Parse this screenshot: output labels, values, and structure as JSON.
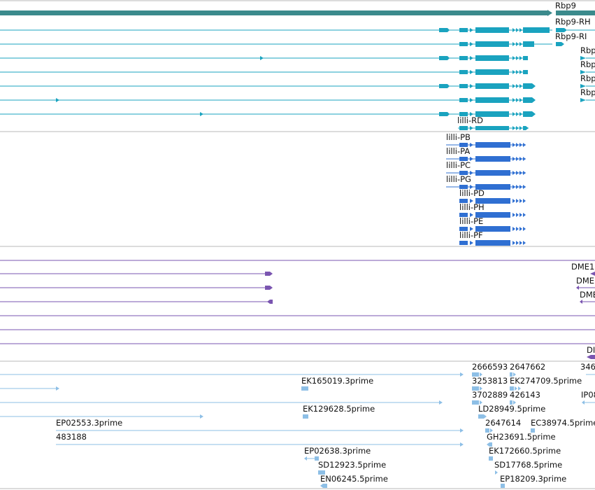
{
  "colors": {
    "gene": "#3b8a8c",
    "transcript_teal": "#1aa3bf",
    "transcript_blue": "#2f6fd2",
    "transcript_purple": "#7a55b0",
    "est": "#8dbfe6",
    "separator": "#b9b9b9"
  },
  "gene_track": {
    "labels": [
      "Rbp9",
      "Rbp9-RH",
      "Rbp9-RI",
      "Rbp",
      "Rbp",
      "Rbp",
      "Rbp",
      "lilli-RD"
    ]
  },
  "lilli_track": {
    "labels": [
      "lilli-PB",
      "lilli-PA",
      "lilli-PC",
      "lilli-PG",
      "lilli-PD",
      "lilli-PH",
      "lilli-PE",
      "lilli-PF"
    ]
  },
  "purple_track": {
    "labels": [
      "DME1",
      "DME",
      "DME",
      "DI"
    ]
  },
  "est_track": {
    "labels": [
      "2666593",
      "2647662",
      "346",
      "EK165019.3prime",
      "3253813",
      "EK274709.5prime",
      "3702889",
      "426143",
      "IP08",
      "EK129628.5prime",
      "LD28949.5prime",
      "EP02553.3prime",
      "2647614",
      "EC38974.5prime",
      "483188",
      "GH23691.5prime",
      "EP02638.3prime",
      "EK172660.5prime",
      "SD12923.5prime",
      "SD17768.5prime",
      "EN06245.5prime",
      "EP18209.3prime"
    ]
  }
}
